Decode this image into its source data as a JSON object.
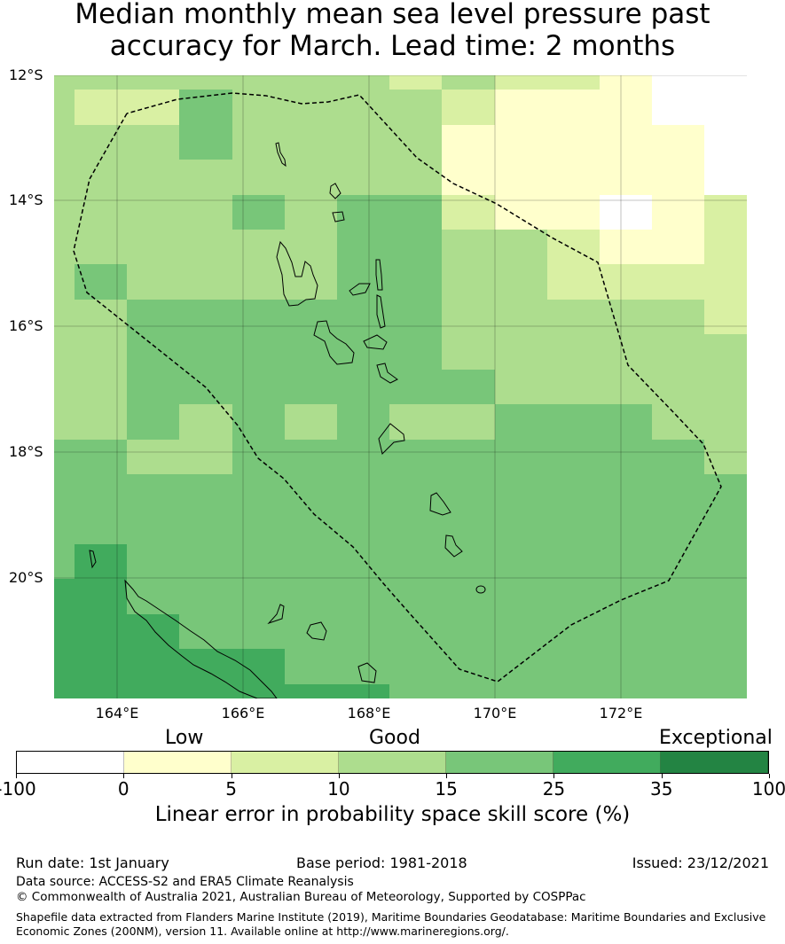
{
  "title": {
    "line1": "Median monthly mean sea level pressure past",
    "line2": "accuracy for March. Lead time: 2 months"
  },
  "chart_data": {
    "type": "heatmap",
    "title": "Median monthly mean sea level pressure past accuracy for March. Lead time: 2 months",
    "lat_ticks": [
      "12°S",
      "14°S",
      "16°S",
      "18°S",
      "20°S"
    ],
    "lon_ticks": [
      "164°E",
      "166°E",
      "168°E",
      "170°E",
      "172°E"
    ],
    "lat_range": [
      -21.9,
      -12
    ],
    "lon_range": [
      163,
      174
    ],
    "categories": [
      {
        "range": "-100 to 0",
        "color": "#ffffff"
      },
      {
        "range": "0 to 5",
        "color": "#ffffcc"
      },
      {
        "range": "5 to 10",
        "color": "#d9f0a3"
      },
      {
        "range": "10 to 15",
        "color": "#addd8e"
      },
      {
        "range": "15 to 25",
        "color": "#78c679"
      },
      {
        "range": "25 to 35",
        "color": "#41ab5d"
      },
      {
        "range": "35 to 100",
        "color": "#238443"
      }
    ],
    "skill_grid": [
      [
        3,
        3,
        3,
        3,
        3,
        3,
        3,
        2,
        3,
        2,
        2,
        1,
        0,
        0
      ],
      [
        3,
        2,
        2,
        4,
        3,
        3,
        3,
        3,
        2,
        1,
        1,
        1,
        0,
        0
      ],
      [
        3,
        3,
        3,
        4,
        3,
        3,
        3,
        3,
        1,
        1,
        1,
        1,
        1,
        0
      ],
      [
        3,
        3,
        3,
        3,
        3,
        3,
        3,
        3,
        1,
        1,
        1,
        1,
        1,
        0
      ],
      [
        3,
        3,
        3,
        3,
        4,
        3,
        4,
        4,
        2,
        1,
        1,
        0,
        1,
        2
      ],
      [
        3,
        3,
        3,
        3,
        3,
        3,
        4,
        4,
        3,
        3,
        2,
        1,
        1,
        2
      ],
      [
        3,
        4,
        3,
        3,
        3,
        3,
        4,
        4,
        3,
        3,
        2,
        2,
        2,
        2
      ],
      [
        3,
        3,
        4,
        4,
        4,
        4,
        4,
        4,
        3,
        3,
        3,
        3,
        3,
        2
      ],
      [
        3,
        3,
        4,
        4,
        4,
        4,
        4,
        4,
        3,
        3,
        3,
        3,
        3,
        3
      ],
      [
        3,
        3,
        4,
        4,
        4,
        4,
        4,
        4,
        4,
        3,
        3,
        3,
        3,
        3
      ],
      [
        3,
        3,
        4,
        3,
        4,
        3,
        4,
        3,
        3,
        4,
        4,
        4,
        3,
        3
      ],
      [
        4,
        4,
        3,
        3,
        4,
        4,
        4,
        4,
        4,
        4,
        4,
        4,
        4,
        3
      ],
      [
        4,
        4,
        4,
        4,
        4,
        4,
        4,
        4,
        4,
        4,
        4,
        4,
        4,
        4
      ],
      [
        4,
        4,
        4,
        4,
        4,
        4,
        4,
        4,
        4,
        4,
        4,
        4,
        4,
        4
      ],
      [
        4,
        5,
        4,
        4,
        4,
        4,
        4,
        4,
        4,
        4,
        4,
        4,
        4,
        4
      ],
      [
        5,
        5,
        4,
        4,
        4,
        4,
        4,
        4,
        4,
        4,
        4,
        4,
        4,
        4
      ],
      [
        5,
        5,
        5,
        4,
        4,
        4,
        4,
        4,
        4,
        4,
        4,
        4,
        4,
        4
      ],
      [
        5,
        5,
        5,
        5,
        5,
        4,
        4,
        4,
        4,
        4,
        4,
        4,
        4,
        4
      ],
      [
        5,
        5,
        5,
        5,
        5,
        5,
        5,
        4,
        4,
        4,
        4,
        4,
        4,
        4
      ]
    ]
  },
  "legend": {
    "category_labels": [
      "Low",
      "Good",
      "Exceptional"
    ],
    "tick_labels": [
      "-100",
      "0",
      "5",
      "10",
      "15",
      "25",
      "35",
      "100"
    ],
    "xlabel": "Linear error in probability space skill score (%)"
  },
  "footer": {
    "run_date": "Run date: 1st January",
    "base_period": "Base period: 1981-2018",
    "issued": "Issued: 23/12/2021",
    "data_source": "Data source: ACCESS-S2 and ERA5 Climate Reanalysis",
    "copyright": "© Commonwealth of Australia 2021, Australian Bureau of Meteorology, Supported by COSPPac",
    "shapefile_line1": "Shapefile data extracted from Flanders Marine Institute (2019), Maritime Boundaries Geodatabase: Maritime Boundaries and Exclusive",
    "shapefile_line2": "Economic Zones (200NM), version 11. Available online at http://www.marineregions.org/."
  }
}
